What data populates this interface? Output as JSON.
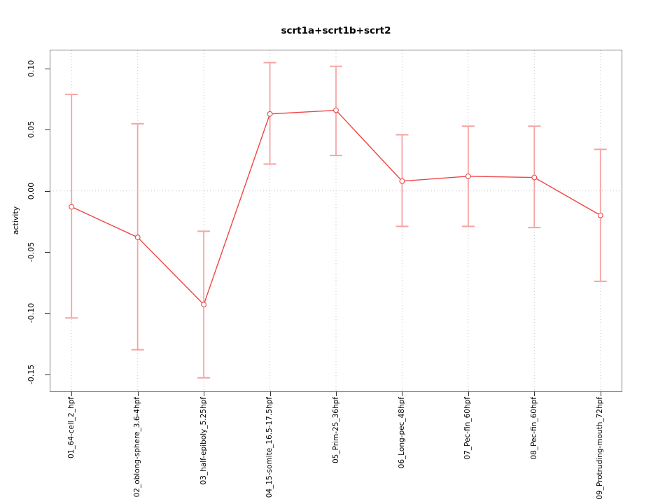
{
  "figure": {
    "background": "#ffffff"
  },
  "chart_data": {
    "type": "line",
    "title": "scrt1a+scrt1b+scrt2",
    "xlabel": "",
    "ylabel": "activity",
    "categories": [
      "01_64-cell_2_hpf",
      "02_oblong-sphere_3.6-4hpf",
      "03_half-epiboly_5.25hpf",
      "04_15-somite_16.5-17.5hpf",
      "05_Prim-25_36hpf",
      "06_Long-pec_48hpf",
      "07_Pec-fin_60hpf",
      "08_Pec-fin_60hpf",
      "09_Protruding-mouth_72hpf"
    ],
    "series": [
      {
        "name": "activity",
        "marker": "open-circle",
        "values": [
          -0.013,
          -0.038,
          -0.093,
          0.063,
          0.066,
          0.008,
          0.012,
          0.011,
          -0.02
        ],
        "error_high": [
          0.079,
          0.055,
          -0.033,
          0.105,
          0.102,
          0.046,
          0.053,
          0.053,
          0.034
        ],
        "error_low": [
          -0.104,
          -0.13,
          -0.153,
          0.022,
          0.029,
          -0.029,
          -0.029,
          -0.03,
          -0.074
        ]
      }
    ],
    "ylim": [
      -0.164,
      0.115
    ],
    "yticks": [
      0.1,
      0.05,
      0.0,
      -0.05,
      -0.1,
      -0.15
    ],
    "ytick_labels": [
      "0.10",
      "0.05",
      "0.00",
      "-0.05",
      "-0.10",
      "-0.15"
    ],
    "grid": {
      "vertical": "per-category",
      "horizontal_at": [
        0
      ],
      "style": "dotted"
    },
    "legend": null,
    "colors": {
      "line": "#ef4444",
      "marker_stroke": "#e84a4a",
      "marker_fill": "#ffffff",
      "error_bar": "#f5a3a3",
      "grid": "#c9c9c9",
      "axis_box": "#828282",
      "tick": "#333333",
      "text": "#000000",
      "background": "#ffffff"
    }
  }
}
